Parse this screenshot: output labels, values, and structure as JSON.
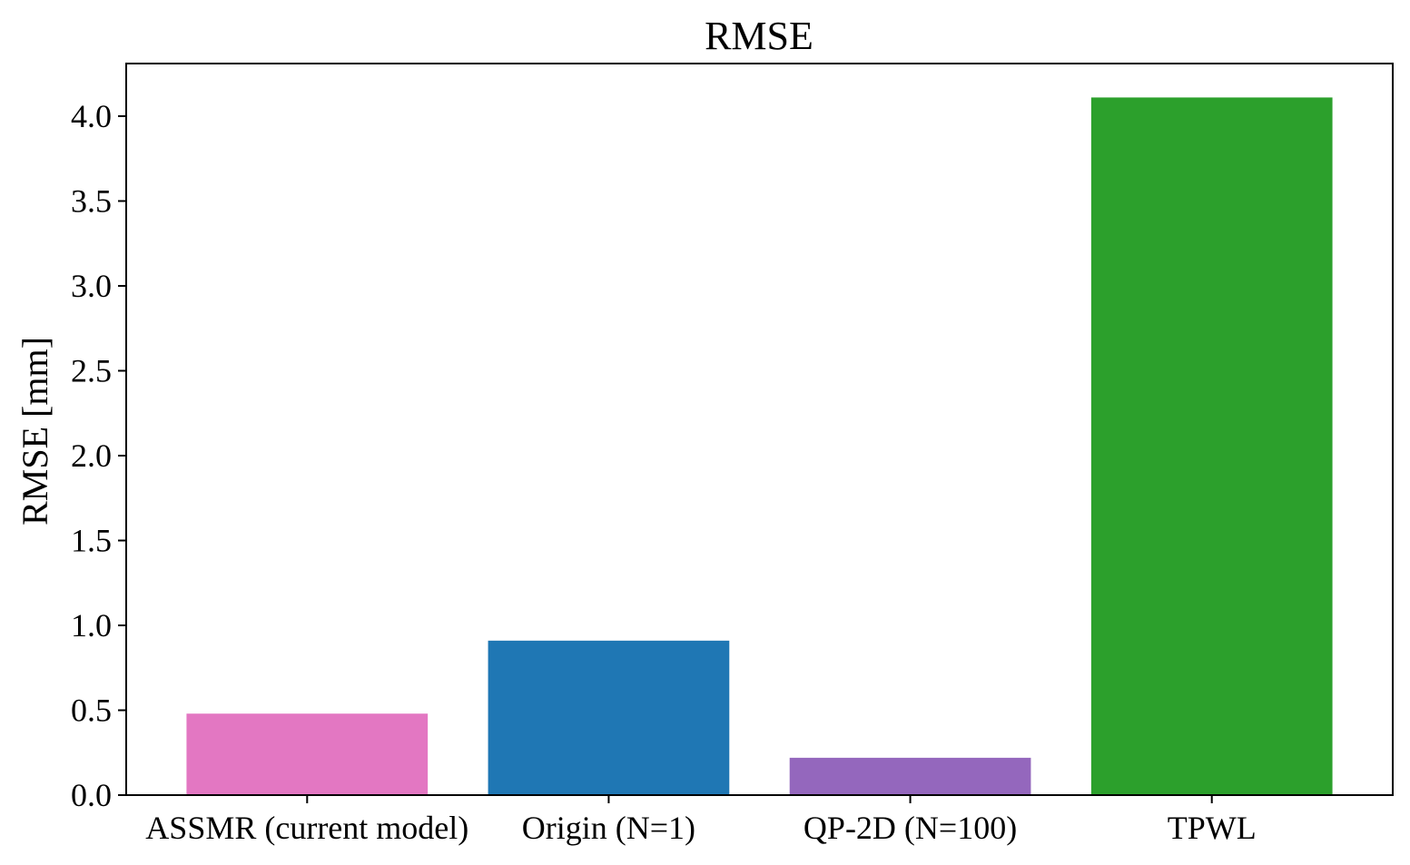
{
  "chart_data": {
    "type": "bar",
    "title": "RMSE",
    "xlabel": "",
    "ylabel": "RMSE [mm]",
    "categories": [
      "ASSMR (current model)",
      "Origin (N=1)",
      "QP-2D (N=100)",
      "TPWL"
    ],
    "values": [
      0.48,
      0.91,
      0.22,
      4.11
    ],
    "colors": [
      "#e377c2",
      "#1f77b4",
      "#9467bd",
      "#2ca02c"
    ],
    "ylim": [
      0,
      4.31
    ],
    "yticks": [
      0.0,
      0.5,
      1.0,
      1.5,
      2.0,
      2.5,
      3.0,
      3.5,
      4.0
    ],
    "ytick_labels": [
      "0.0",
      "0.5",
      "1.0",
      "1.5",
      "2.0",
      "2.5",
      "3.0",
      "3.5",
      "4.0"
    ],
    "grid": false,
    "legend": false
  }
}
